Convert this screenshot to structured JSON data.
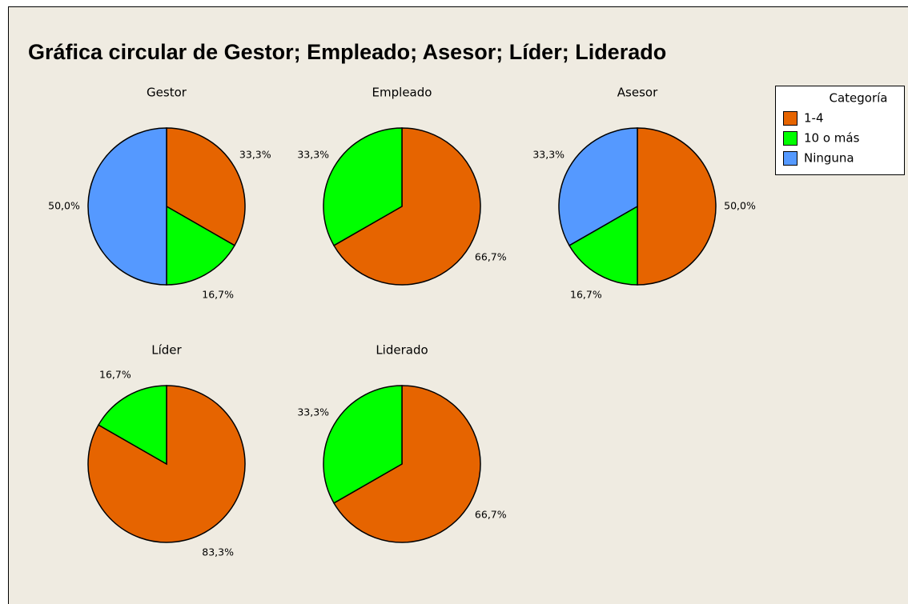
{
  "title": "Gráfica circular de Gestor; Empleado; Asesor; Líder; Liderado",
  "legend": {
    "title": "Categoría",
    "entries": [
      {
        "name": "1-4",
        "color": "#e66400"
      },
      {
        "name": "10 o más",
        "color": "#00ff00"
      },
      {
        "name": "Ninguna",
        "color": "#5599ff"
      }
    ]
  },
  "chart_data": [
    {
      "type": "pie",
      "title": "Gestor",
      "categories": [
        "1-4",
        "10 o más",
        "Ninguna"
      ],
      "values": [
        33.3,
        16.7,
        50.0
      ],
      "value_labels": [
        "33,3%",
        "16,7%",
        "50,0%"
      ]
    },
    {
      "type": "pie",
      "title": "Empleado",
      "categories": [
        "1-4",
        "10 o más"
      ],
      "values": [
        66.7,
        33.3
      ],
      "value_labels": [
        "66,7%",
        "33,3%"
      ]
    },
    {
      "type": "pie",
      "title": "Asesor",
      "categories": [
        "1-4",
        "10 o más",
        "Ninguna"
      ],
      "values": [
        50.0,
        16.7,
        33.3
      ],
      "value_labels": [
        "50,0%",
        "16,7%",
        "33,3%"
      ]
    },
    {
      "type": "pie",
      "title": "Líder",
      "categories": [
        "1-4",
        "10 o más"
      ],
      "values": [
        83.3,
        16.7
      ],
      "value_labels": [
        "83,3%",
        "16,7%"
      ]
    },
    {
      "type": "pie",
      "title": "Liderado",
      "categories": [
        "1-4",
        "10 o más"
      ],
      "values": [
        66.7,
        33.3
      ],
      "value_labels": [
        "66,7%",
        "33,3%"
      ]
    }
  ]
}
